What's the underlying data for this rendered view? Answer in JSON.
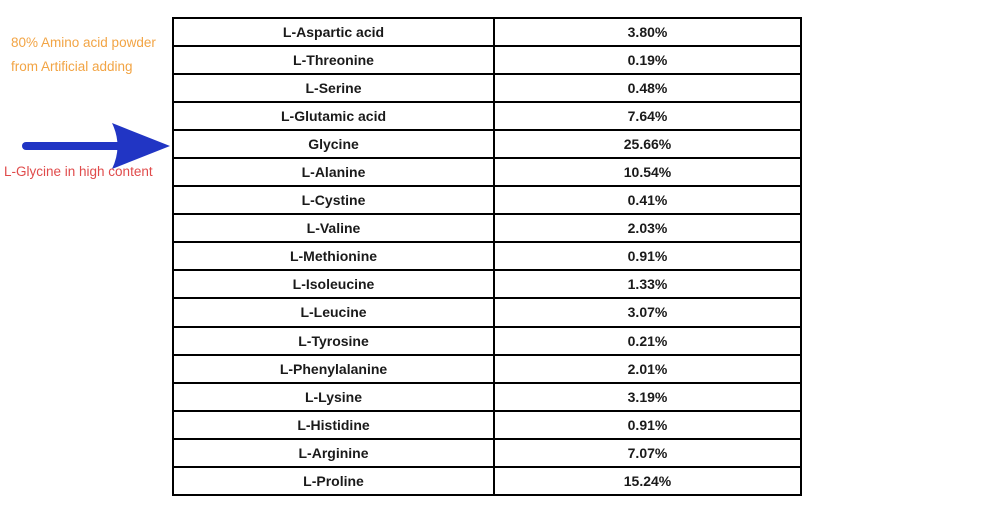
{
  "page": {
    "background": "#ffffff"
  },
  "annotations": {
    "orange_note": {
      "lines": [
        "80% Amino acid powder",
        "from Artificial adding"
      ],
      "color": "#F2A444"
    },
    "arrow": {
      "description": "blue right-pointing arrow at Glycine row",
      "color": "#2135C4"
    },
    "red_note": {
      "text": "L-Glycine in high content",
      "color": "#E04B4B"
    }
  },
  "chart_data": {
    "type": "table",
    "columns": [
      "amino_acid",
      "content_percent"
    ],
    "rows": [
      {
        "name": "L-Aspartic acid",
        "value": "3.80%"
      },
      {
        "name": "L-Threonine",
        "value": "0.19%"
      },
      {
        "name": "L-Serine",
        "value": "0.48%"
      },
      {
        "name": "L-Glutamic acid",
        "value": "7.64%"
      },
      {
        "name": "Glycine",
        "value": "25.66%"
      },
      {
        "name": "L-Alanine",
        "value": "10.54%"
      },
      {
        "name": "L-Cystine",
        "value": "0.41%"
      },
      {
        "name": "L-Valine",
        "value": "2.03%"
      },
      {
        "name": "L-Methionine",
        "value": "0.91%"
      },
      {
        "name": "L-Isoleucine",
        "value": "1.33%"
      },
      {
        "name": "L-Leucine",
        "value": "3.07%"
      },
      {
        "name": "L-Tyrosine",
        "value": "0.21%"
      },
      {
        "name": "L-Phenylalanine",
        "value": "2.01%"
      },
      {
        "name": "L-Lysine",
        "value": "3.19%"
      },
      {
        "name": "L-Histidine",
        "value": "0.91%"
      },
      {
        "name": "L-Arginine",
        "value": "7.07%"
      },
      {
        "name": "L-Proline",
        "value": "15.24%"
      }
    ],
    "highlighted_row": "Glycine",
    "table_style": {
      "border_color": "#000000",
      "text_color": "#1a1a1a",
      "grid": true
    }
  }
}
